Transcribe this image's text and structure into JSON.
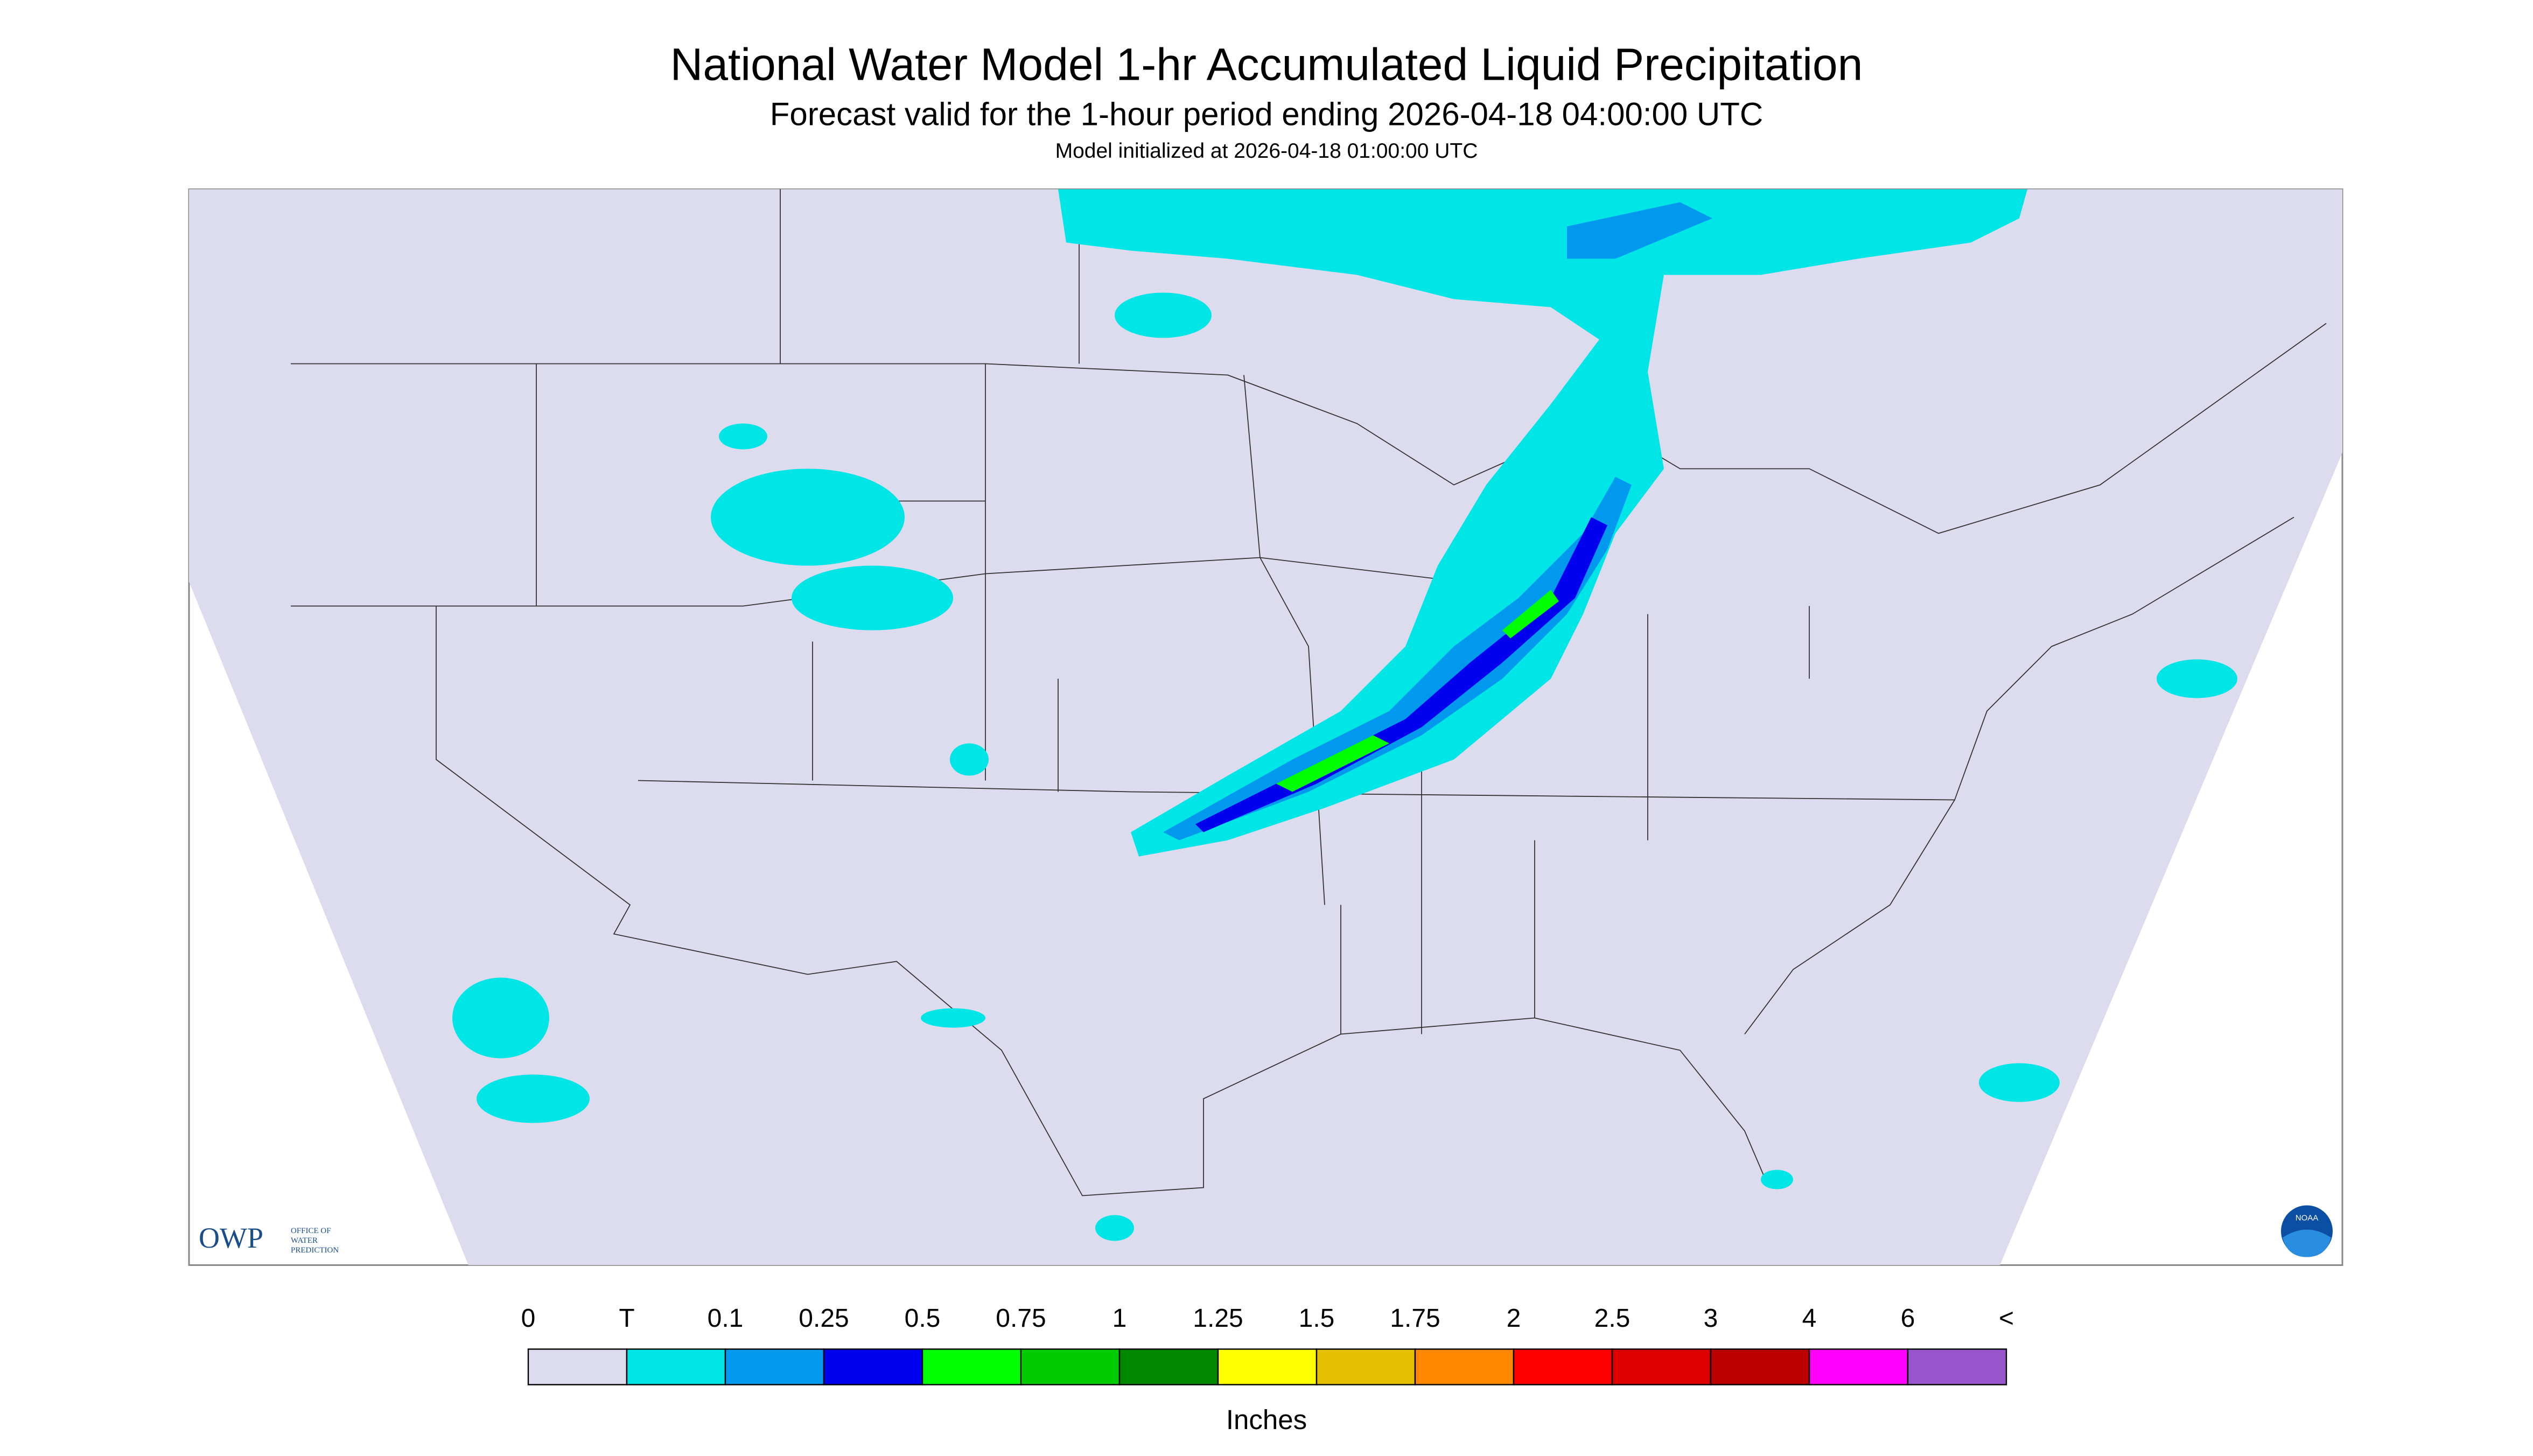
{
  "header": {
    "title": "National Water Model 1-hr Accumulated Liquid Precipitation",
    "subtitle": "Forecast valid for the 1-hour period ending 2026-04-18 04:00:00 UTC",
    "note": "Model initialized at 2026-04-18 01:00:00 UTC"
  },
  "logo": {
    "name": "OWP",
    "line1": "OFFICE OF",
    "line2": "WATER",
    "line3": "PREDICTION",
    "badge": "NOAA"
  },
  "legend": {
    "labels": [
      "0",
      "T",
      "0.1",
      "0.25",
      "0.5",
      "0.75",
      "1",
      "1.25",
      "1.5",
      "1.75",
      "2",
      "2.5",
      "3",
      "4",
      "6",
      "<"
    ],
    "colors": [
      "#dcdcee",
      "#00e5e5",
      "#0099ee",
      "#0000ee",
      "#00ff00",
      "#00cc00",
      "#008800",
      "#ffff00",
      "#e5c000",
      "#ff8800",
      "#ff0000",
      "#dd0000",
      "#bb0000",
      "#ff00ff",
      "#9955cc"
    ],
    "unit": "Inches"
  }
}
